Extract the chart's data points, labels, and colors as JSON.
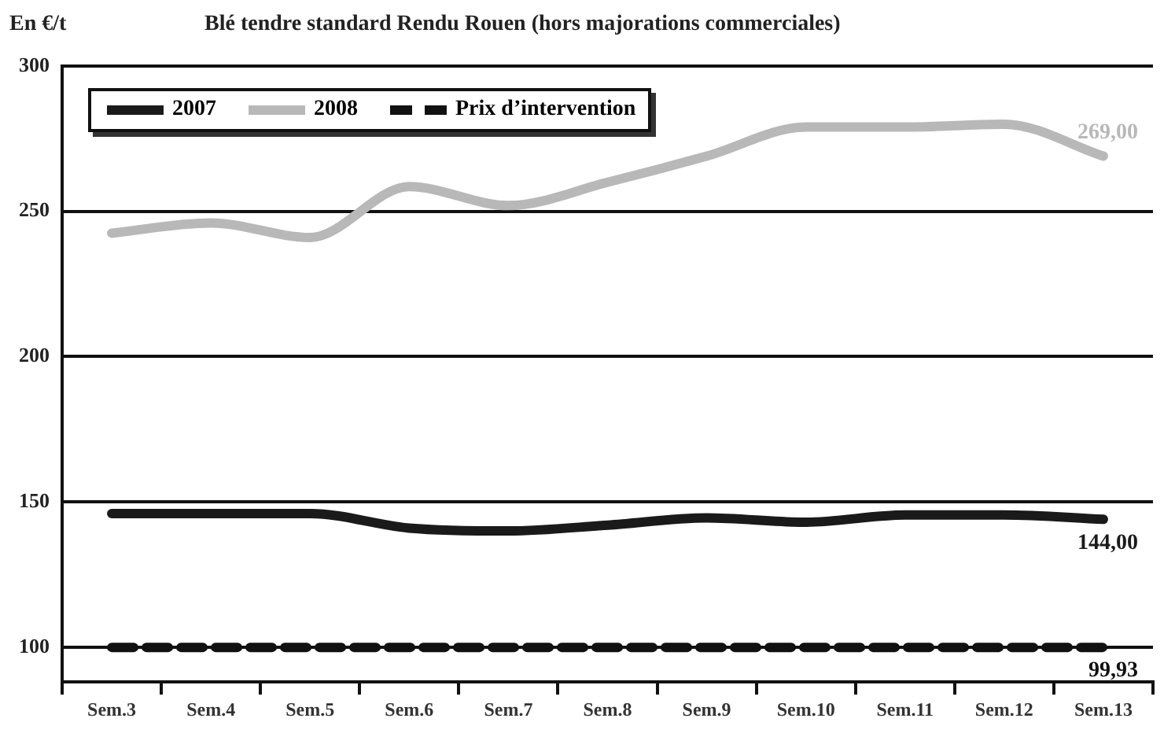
{
  "chart_data": {
    "type": "line",
    "title": "Blé tendre standard Rendu Rouen (hors majorations commerciales)",
    "ylabel": "En €/t",
    "categories": [
      "Sem.3",
      "Sem.4",
      "Sem.5",
      "Sem.6",
      "Sem.7",
      "Sem.8",
      "Sem.9",
      "Sem.10",
      "Sem.11",
      "Sem.12",
      "Sem.13"
    ],
    "series": [
      {
        "name": "2007",
        "color": "#1a1a1a",
        "values": [
          146,
          146,
          146,
          141,
          140,
          142,
          144.5,
          143,
          145.5,
          145.5,
          144
        ],
        "value_labels": [
          null,
          null,
          null,
          null,
          null,
          null,
          null,
          null,
          null,
          null,
          "144,00"
        ]
      },
      {
        "name": "2008",
        "color": "#b8b8b8",
        "values": [
          242.5,
          246,
          241,
          258.5,
          252,
          260,
          269,
          279,
          279,
          280,
          269
        ],
        "value_labels": [
          null,
          null,
          null,
          null,
          null,
          null,
          null,
          null,
          null,
          null,
          "269,00"
        ]
      },
      {
        "name": "Prix d’intervention",
        "color": "#111111",
        "line_style": "dashed",
        "values": [
          99.93,
          99.93,
          99.93,
          99.93,
          99.93,
          99.93,
          99.93,
          99.93,
          99.93,
          99.93,
          99.93
        ],
        "value_labels": [
          null,
          null,
          null,
          null,
          null,
          null,
          null,
          null,
          null,
          null,
          "99,93"
        ]
      }
    ],
    "ylim": [
      88,
      300
    ],
    "yticks": [
      100,
      150,
      200,
      250,
      300
    ],
    "grid": "y",
    "legend": "top left",
    "marker": "none",
    "line_style": "solid"
  }
}
